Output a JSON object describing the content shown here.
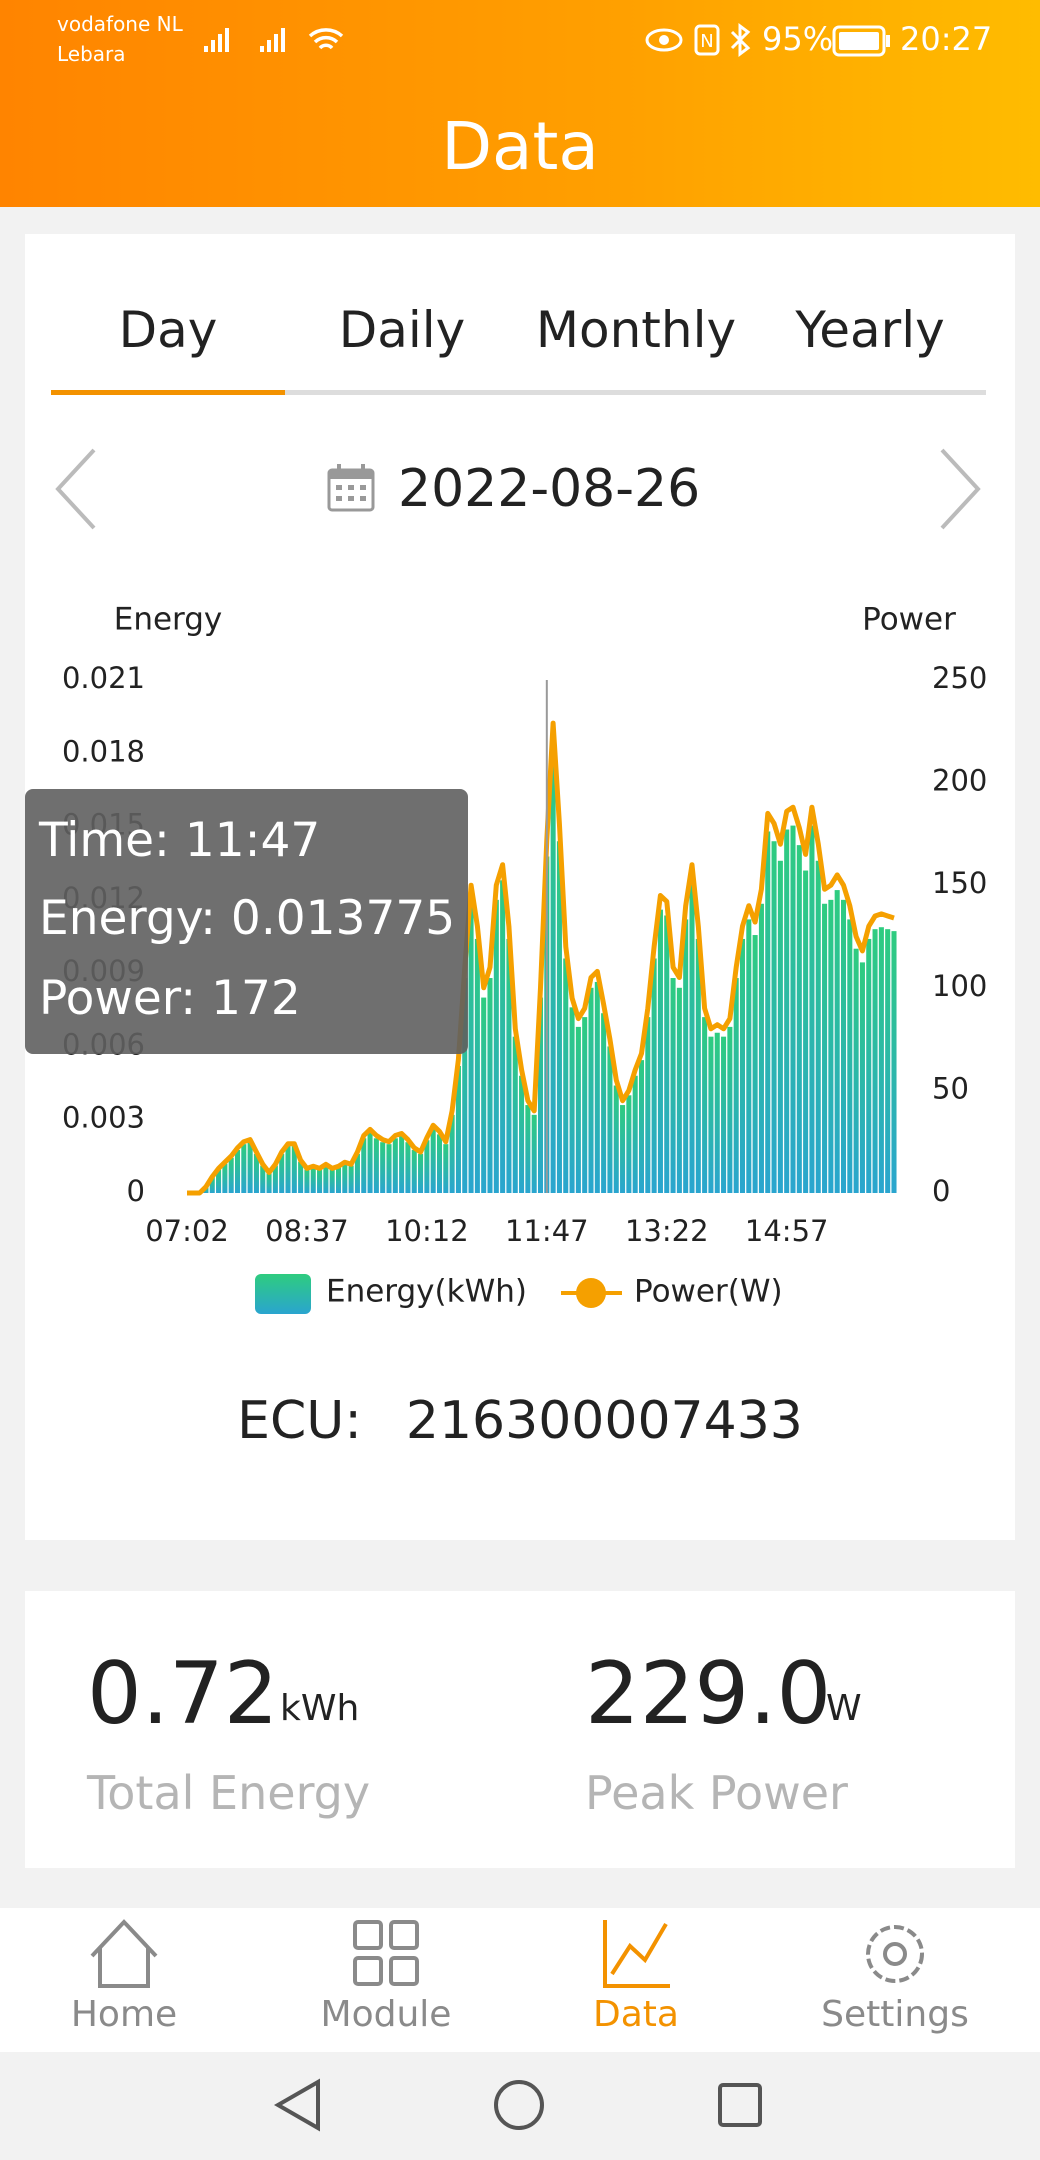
{
  "status_bar": {
    "carrier": "vodafone NL",
    "carrier2": "Lebara",
    "battery": "95%",
    "time": "20:27"
  },
  "header": {
    "title": "Data"
  },
  "tabs": [
    "Day",
    "Daily",
    "Monthly",
    "Yearly"
  ],
  "date": "2022-08-26",
  "chart_data": {
    "type": "bar",
    "y_title": "Energy",
    "y2_title": "Power",
    "categories": [
      "07:02",
      null,
      null,
      null,
      null,
      null,
      null,
      null,
      null,
      null,
      null,
      null,
      null,
      null,
      null,
      null,
      null,
      null,
      null,
      "08:37",
      null,
      null,
      null,
      null,
      null,
      null,
      null,
      null,
      null,
      null,
      null,
      null,
      null,
      null,
      null,
      null,
      null,
      null,
      "10:12",
      null,
      null,
      null,
      null,
      null,
      null,
      null,
      null,
      null,
      null,
      null,
      null,
      null,
      null,
      null,
      null,
      null,
      null,
      "11:47",
      null,
      null,
      null,
      null,
      null,
      null,
      null,
      null,
      null,
      null,
      null,
      null,
      null,
      null,
      null,
      null,
      null,
      null,
      "13:22",
      null,
      null,
      null,
      null,
      null,
      null,
      null,
      null,
      null,
      null,
      null,
      null,
      null,
      null,
      null,
      null,
      null,
      null,
      "14:57",
      null,
      null,
      null,
      null,
      null,
      null,
      null,
      null,
      null,
      null,
      null,
      null,
      null,
      null,
      null,
      null,
      null
    ],
    "series": [
      {
        "name": "Energy(kWh)",
        "type": "bar",
        "color": "#2ecc7f",
        "values": [
          0,
          0,
          0,
          0.00024,
          0.00064,
          0.00096,
          0.0012,
          0.00144,
          0.00176,
          0.002,
          0.00208,
          0.0016,
          0.00112,
          0.0008,
          0.00112,
          0.0016,
          0.00192,
          0.00192,
          0.00128,
          0.00096,
          0.00104,
          0.00096,
          0.00112,
          0.00096,
          0.00104,
          0.0012,
          0.00112,
          0.0016,
          0.00224,
          0.00248,
          0.00224,
          0.00208,
          0.002,
          0.00224,
          0.00232,
          0.00208,
          0.00176,
          0.0016,
          0.00216,
          0.00264,
          0.0024,
          0.002,
          0.0032,
          0.0052,
          0.0088,
          0.012,
          0.0104,
          0.008,
          0.0088,
          0.012,
          0.0128,
          0.0104,
          0.0064,
          0.0048,
          0.0036,
          0.0032,
          0.008,
          0.013775,
          0.01832,
          0.0144,
          0.0096,
          0.0076,
          0.0068,
          0.0072,
          0.0084,
          0.00864,
          0.00736,
          0.006,
          0.0044,
          0.0036,
          0.004,
          0.0048,
          0.00544,
          0.0072,
          0.0096,
          0.0116,
          0.01136,
          0.0088,
          0.0084,
          0.0112,
          0.0128,
          0.0104,
          0.0072,
          0.0064,
          0.00656,
          0.0064,
          0.0068,
          0.0088,
          0.0104,
          0.0112,
          0.01056,
          0.01184,
          0.0148,
          0.0144,
          0.0136,
          0.01488,
          0.01504,
          0.01424,
          0.0132,
          0.01504,
          0.0136,
          0.01184,
          0.012,
          0.0124,
          0.012,
          0.0112,
          0.01,
          0.00944,
          0.0104,
          0.0108,
          0.01088,
          0.0108,
          0.01072
        ]
      },
      {
        "name": "Power(W)",
        "type": "line",
        "axis": "y2",
        "color": "#f5a000",
        "values": [
          0,
          0,
          0,
          3,
          8,
          12,
          15,
          18,
          22,
          25,
          26,
          20,
          14,
          10,
          14,
          20,
          24,
          24,
          16,
          12,
          13,
          12,
          14,
          12,
          13,
          15,
          14,
          20,
          28,
          31,
          28,
          26,
          25,
          28,
          29,
          26,
          22,
          20,
          27,
          33,
          30,
          25,
          40,
          65,
          110,
          150,
          130,
          100,
          110,
          150,
          160,
          130,
          80,
          60,
          45,
          40,
          100,
          172,
          229,
          180,
          120,
          95,
          85,
          90,
          105,
          108,
          92,
          75,
          55,
          45,
          50,
          60,
          68,
          90,
          120,
          145,
          142,
          110,
          105,
          140,
          160,
          130,
          90,
          80,
          82,
          80,
          85,
          110,
          130,
          140,
          132,
          148,
          185,
          180,
          170,
          186,
          188,
          178,
          165,
          188,
          170,
          148,
          150,
          155,
          150,
          140,
          125,
          118,
          130,
          135,
          136,
          135,
          134
        ]
      }
    ],
    "ylim": [
      0,
      0.021
    ],
    "yticks": [
      0,
      0.003,
      0.006,
      0.009,
      0.012,
      0.015,
      0.018,
      0.021
    ],
    "y2lim": [
      0,
      250
    ],
    "y2ticks": [
      0,
      50,
      100,
      150,
      200,
      250
    ]
  },
  "tooltip": {
    "time_label": "Time:",
    "time": "11:47",
    "energy_label": "Energy:",
    "energy": 0.013775,
    "power_label": "Power:",
    "power": 172
  },
  "ecu": {
    "label": "ECU:",
    "value": "216300007433"
  },
  "stats": [
    {
      "value": "0.72",
      "unit": "kWh",
      "label": "Total Energy"
    },
    {
      "value": "229.0",
      "unit": "W",
      "label": "Peak Power"
    }
  ],
  "nav": [
    "Home",
    "Module",
    "Data",
    "Settings"
  ]
}
